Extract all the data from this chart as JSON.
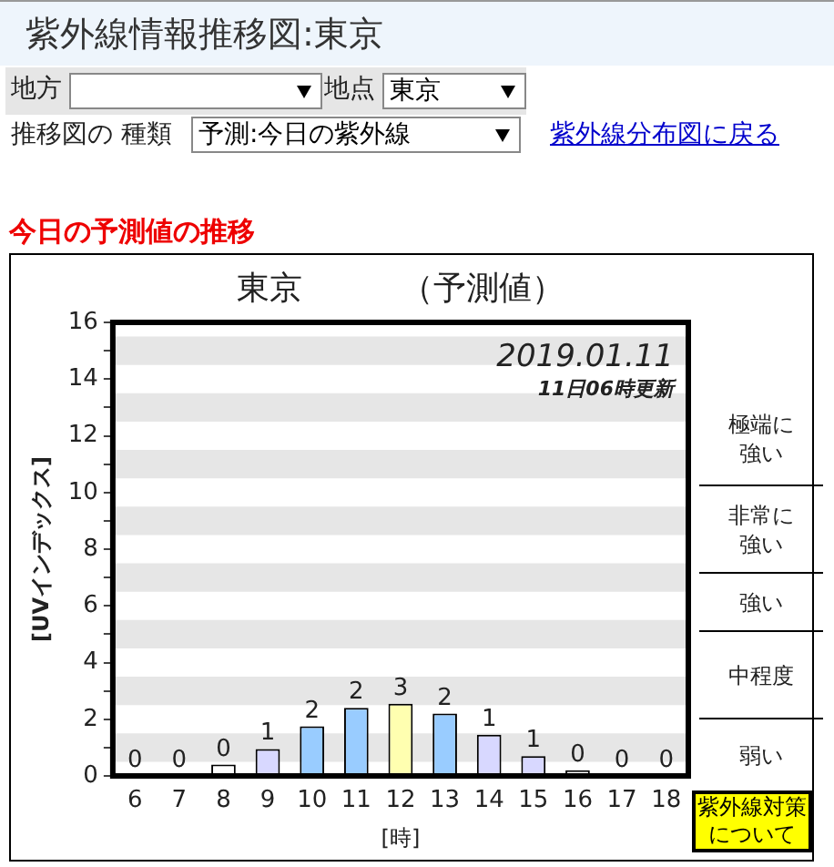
{
  "chart_data": {
    "type": "bar",
    "title": "東京　　　（予測値）",
    "xlabel": "[時]",
    "ylabel": "[UVインデックス]",
    "categories": [
      "6",
      "7",
      "8",
      "9",
      "10",
      "11",
      "12",
      "13",
      "14",
      "15",
      "16",
      "17",
      "18"
    ],
    "values": [
      0,
      0,
      0.4,
      0.95,
      1.75,
      2.4,
      2.55,
      2.2,
      1.45,
      0.7,
      0.2,
      0,
      0
    ],
    "value_labels": [
      "0",
      "0",
      "0",
      "1",
      "2",
      "2",
      "3",
      "2",
      "1",
      "1",
      "0",
      "0",
      "0"
    ],
    "colors": [
      "#ffffff",
      "#ffffff",
      "#ffffff",
      "#d8d8ff",
      "#99ccff",
      "#99ccff",
      "#ffffb0",
      "#99ccff",
      "#d8d8ff",
      "#d8d8ff",
      "#ffffff",
      "#ffffff",
      "#ffffff"
    ],
    "ylim": [
      0,
      16
    ],
    "yticks": [
      0,
      {
        "value": 1,
        "label": null
      },
      2,
      {
        "value": 3,
        "label": null
      },
      4,
      {
        "value": 5,
        "label": null
      },
      6,
      {
        "value": 7,
        "label": null
      },
      8,
      {
        "value": 9,
        "label": null
      },
      10,
      {
        "value": 11,
        "label": null
      },
      12,
      {
        "value": 13,
        "label": null
      },
      14,
      {
        "value": 15,
        "label": null
      },
      16
    ],
    "bands": [
      {
        "axis": "y",
        "from": 0.5,
        "to": 1.5,
        "color": "#e6e6e6"
      },
      {
        "axis": "y",
        "from": 2.5,
        "to": 3.5,
        "color": "#e6e6e6"
      },
      {
        "axis": "y",
        "from": 4.5,
        "to": 5.5,
        "color": "#e6e6e6"
      },
      {
        "axis": "y",
        "from": 6.5,
        "to": 7.5,
        "color": "#e6e6e6"
      },
      {
        "axis": "y",
        "from": 8.5,
        "to": 9.5,
        "color": "#e6e6e6"
      },
      {
        "axis": "y",
        "from": 10.5,
        "to": 11.5,
        "color": "#e6e6e6"
      },
      {
        "axis": "y",
        "from": 12.5,
        "to": 13.5,
        "color": "#e6e6e6"
      },
      {
        "axis": "y",
        "from": 14.5,
        "to": 15.5,
        "color": "#e6e6e6"
      }
    ],
    "annotations": [
      "紫外線情報推移図:東京",
      "地方",
      "地点",
      "東京",
      "推移図の 種類",
      "予測:今日の紫外線",
      "紫外線分布図に戻る",
      "今日の予測値の推移",
      "2019.01.11",
      "11日06時更新",
      "紫外線対策について",
      "極端に強い",
      "非常に強い",
      "強い",
      "中程度",
      "弱い"
    ],
    "grid": false,
    "legend": false
  }
}
